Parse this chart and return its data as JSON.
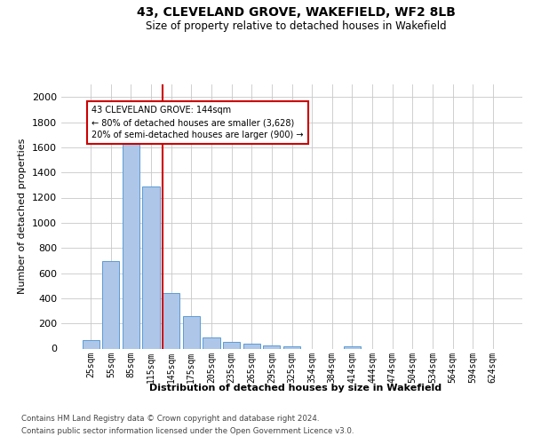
{
  "title": "43, CLEVELAND GROVE, WAKEFIELD, WF2 8LB",
  "subtitle": "Size of property relative to detached houses in Wakefield",
  "xlabel": "Distribution of detached houses by size in Wakefield",
  "ylabel": "Number of detached properties",
  "categories": [
    "25sqm",
    "55sqm",
    "85sqm",
    "115sqm",
    "145sqm",
    "175sqm",
    "205sqm",
    "235sqm",
    "265sqm",
    "295sqm",
    "325sqm",
    "354sqm",
    "384sqm",
    "414sqm",
    "444sqm",
    "474sqm",
    "504sqm",
    "534sqm",
    "564sqm",
    "594sqm",
    "624sqm"
  ],
  "values": [
    65,
    695,
    1630,
    1285,
    440,
    255,
    90,
    55,
    38,
    28,
    18,
    0,
    0,
    18,
    0,
    0,
    0,
    0,
    0,
    0,
    0
  ],
  "bar_color": "#aec6e8",
  "bar_edge_color": "#5b9bd5",
  "marker_label_line1": "43 CLEVELAND GROVE: 144sqm",
  "marker_label_line2": "← 80% of detached houses are smaller (3,628)",
  "marker_label_line3": "20% of semi-detached houses are larger (900) →",
  "annotation_box_color": "#ffffff",
  "annotation_box_edge": "#cc0000",
  "marker_line_color": "#cc0000",
  "background_color": "#ffffff",
  "grid_color": "#c8c8c8",
  "ylim": [
    0,
    2100
  ],
  "yticks": [
    0,
    200,
    400,
    600,
    800,
    1000,
    1200,
    1400,
    1600,
    1800,
    2000
  ],
  "footer_line1": "Contains HM Land Registry data © Crown copyright and database right 2024.",
  "footer_line2": "Contains public sector information licensed under the Open Government Licence v3.0."
}
